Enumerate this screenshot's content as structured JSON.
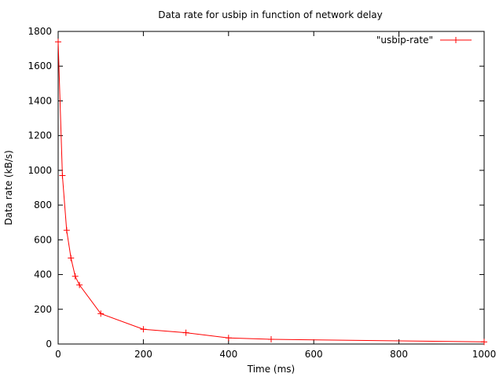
{
  "chart_data": {
    "type": "line",
    "title": "Data rate for usbip in function of network delay",
    "xlabel": "Time (ms)",
    "ylabel": "Data rate (kB/s)",
    "xlim": [
      0,
      1000
    ],
    "ylim": [
      0,
      1800
    ],
    "xticks": [
      0,
      200,
      400,
      600,
      800,
      1000
    ],
    "yticks": [
      0,
      200,
      400,
      600,
      800,
      1000,
      1200,
      1400,
      1600,
      1800
    ],
    "grid": false,
    "legend_position": "top-right",
    "series": [
      {
        "name": "\"usbip-rate\"",
        "color": "#ff0000",
        "marker": "plus",
        "x": [
          0,
          10,
          20,
          30,
          40,
          50,
          100,
          200,
          300,
          400,
          500,
          1000
        ],
        "y": [
          1740,
          970,
          655,
          495,
          390,
          340,
          175,
          85,
          65,
          35,
          27,
          12
        ]
      }
    ]
  }
}
